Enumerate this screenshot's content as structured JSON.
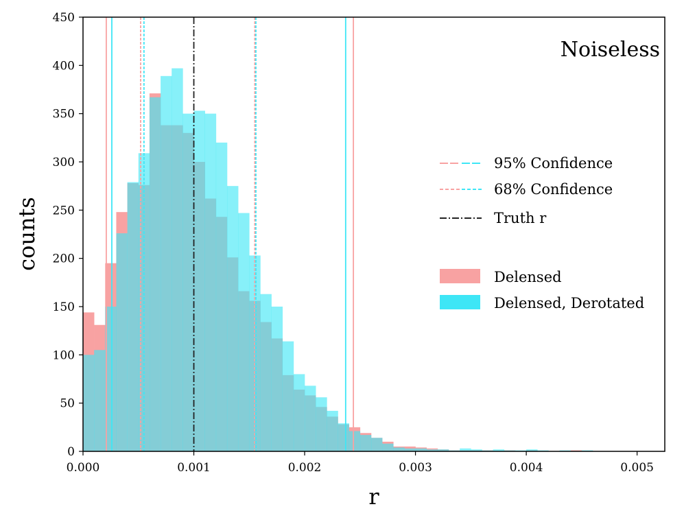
{
  "chart_data": {
    "type": "histogram",
    "annotation": "Noiseless",
    "xlabel": "r",
    "ylabel": "counts",
    "xlim": [
      0.0,
      0.00525
    ],
    "ylim": [
      0,
      450
    ],
    "xticks": [
      0.0,
      0.001,
      0.002,
      0.003,
      0.004,
      0.005
    ],
    "xtick_labels": [
      "0.000",
      "0.001",
      "0.002",
      "0.003",
      "0.004",
      "0.005"
    ],
    "yticks": [
      0,
      50,
      100,
      150,
      200,
      250,
      300,
      350,
      400,
      450
    ],
    "ytick_labels": [
      "0",
      "50",
      "100",
      "150",
      "200",
      "250",
      "300",
      "350",
      "400",
      "450"
    ],
    "bin_width": 0.0001,
    "colors": {
      "delensed": "#f8a2a2",
      "derotated": "#3ee6f6",
      "overlap": "#84cfd7",
      "truth": "#222222"
    },
    "series": [
      {
        "name": "Delensed",
        "bin_start": 0.0,
        "values": [
          144,
          131,
          195,
          248,
          278,
          276,
          371,
          338,
          338,
          330,
          300,
          262,
          243,
          201,
          166,
          156,
          134,
          117,
          79,
          64,
          58,
          46,
          36,
          28,
          25,
          19,
          14,
          10,
          5,
          5,
          4,
          3,
          2,
          1,
          1,
          1,
          1,
          0,
          1,
          0,
          1,
          0,
          0,
          0,
          1,
          0,
          0,
          0,
          0,
          0,
          0
        ]
      },
      {
        "name": "Delensed, Derotated",
        "bin_start": 0.0,
        "values": [
          100,
          105,
          150,
          226,
          279,
          309,
          367,
          389,
          397,
          350,
          353,
          350,
          320,
          275,
          247,
          203,
          163,
          150,
          114,
          80,
          68,
          56,
          42,
          29,
          21,
          17,
          14,
          8,
          4,
          3,
          3,
          2,
          2,
          1,
          3,
          2,
          1,
          2,
          1,
          1,
          2,
          1,
          0,
          1,
          0,
          1,
          0,
          0,
          0,
          0,
          0
        ]
      }
    ],
    "vlines": [
      {
        "series": "Delensed",
        "kind": "95",
        "x": 0.00021
      },
      {
        "series": "Delensed",
        "kind": "95",
        "x": 0.00244
      },
      {
        "series": "Delensed, Derotated",
        "kind": "95",
        "x": 0.00026
      },
      {
        "series": "Delensed, Derotated",
        "kind": "95",
        "x": 0.00237
      },
      {
        "series": "Delensed",
        "kind": "68",
        "x": 0.00052
      },
      {
        "series": "Delensed",
        "kind": "68",
        "x": 0.00155
      },
      {
        "series": "Delensed, Derotated",
        "kind": "68",
        "x": 0.00055
      },
      {
        "series": "Delensed, Derotated",
        "kind": "68",
        "x": 0.00156
      },
      {
        "series": "Truth",
        "kind": "truth",
        "x": 0.001
      }
    ],
    "legend": {
      "placement": "right",
      "line_entries": [
        "95% Confidence",
        "68% Confidence",
        "Truth r"
      ],
      "patch_entries": [
        "Delensed",
        "Delensed, Derotated"
      ]
    }
  }
}
